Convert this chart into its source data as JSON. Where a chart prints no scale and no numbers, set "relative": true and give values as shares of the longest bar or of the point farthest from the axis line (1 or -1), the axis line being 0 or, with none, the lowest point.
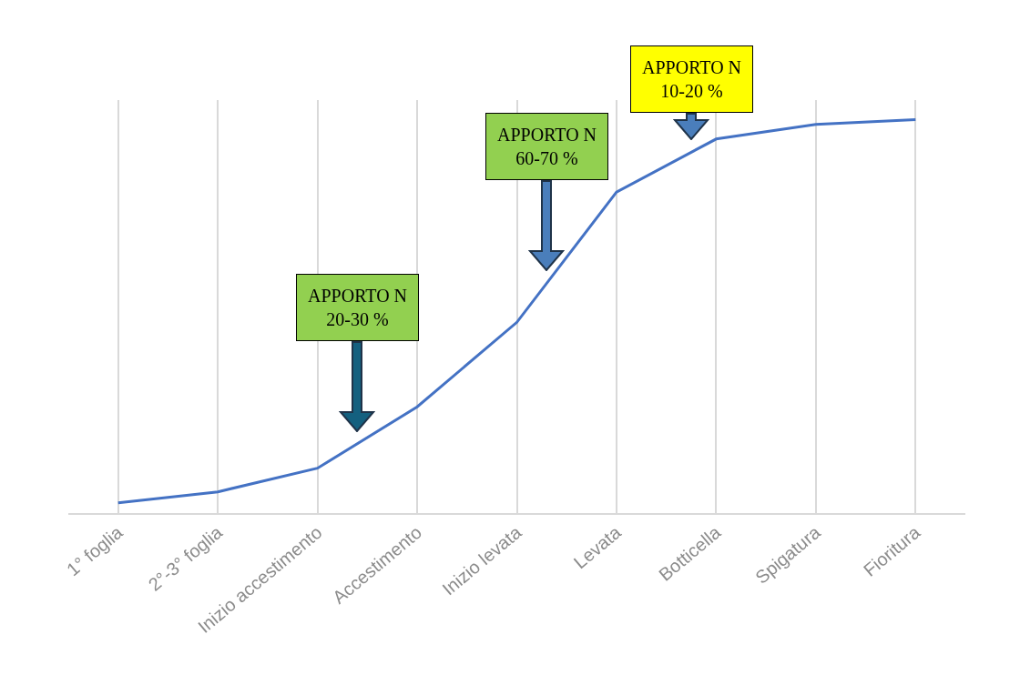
{
  "chart_data": {
    "type": "line",
    "relative": true,
    "categories": [
      "1° foglia",
      "2°-3° foglia",
      "Inizio accestimento",
      "Accestimento",
      "Inizio levata",
      "Levata",
      "Botticella",
      "Spigatura",
      "Fioritura"
    ],
    "series": [
      {
        "color": "#4472c4",
        "values": [
          0.026,
          0.054,
          0.114,
          0.27,
          0.485,
          0.816,
          0.951,
          0.988,
          1
        ]
      }
    ],
    "annotations": [
      "APPORTO N\n20-30 %",
      "APPORTO N\n60-70 %",
      "APPORTO N\n10-20 %"
    ],
    "grid": "x",
    "tick_labels": "x",
    "legend": false,
    "marker": "none",
    "line_style": "solid"
  }
}
